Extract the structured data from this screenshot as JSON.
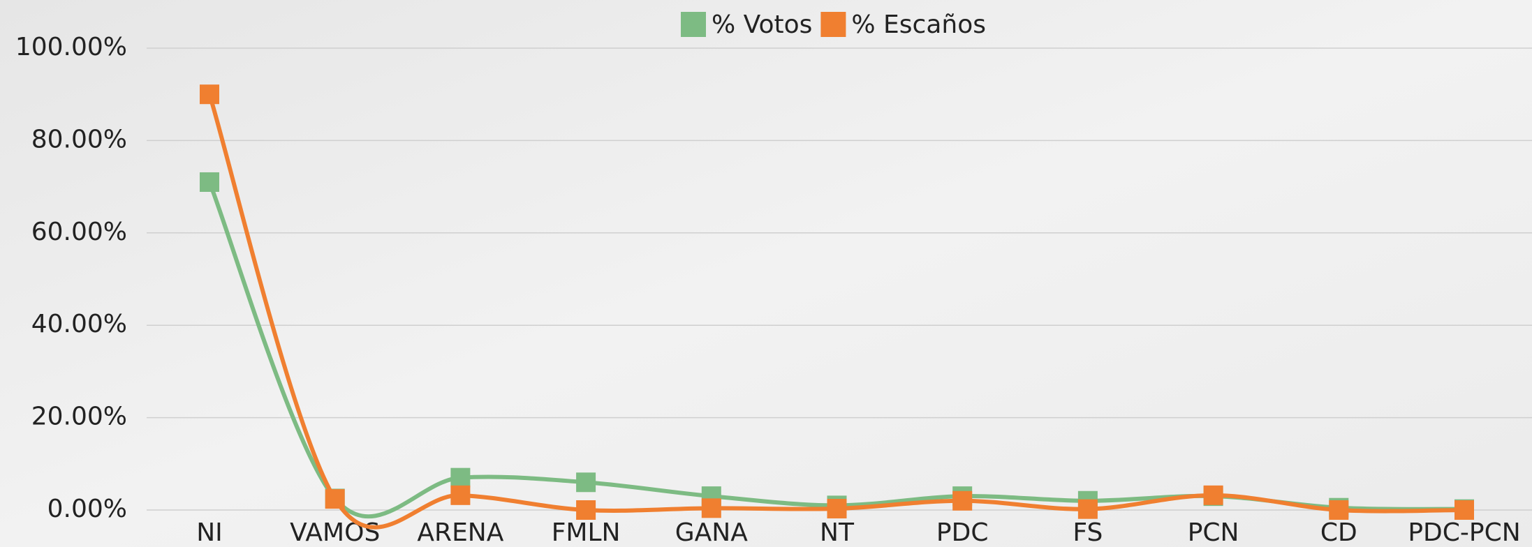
{
  "chart_data": {
    "type": "line",
    "categories": [
      "NI",
      "VAMOS",
      "ARENA",
      "FMLN",
      "GANA",
      "NT",
      "PDC",
      "FS",
      "PCN",
      "CD",
      "PDC-PCN"
    ],
    "series": [
      {
        "name": "% Votos",
        "color": "#7dbb83",
        "values": [
          71,
          2.5,
          7,
          6,
          3,
          1,
          3,
          2,
          3,
          0.5,
          0.2
        ]
      },
      {
        "name": "% Escaños",
        "color": "#f07f30",
        "values": [
          90,
          2.4,
          3.2,
          0,
          0.4,
          0.3,
          2,
          0.2,
          3.2,
          0,
          0
        ]
      }
    ],
    "ylim": [
      0,
      100
    ],
    "yticks": [
      {
        "value": 0,
        "label": "0.00%"
      },
      {
        "value": 20,
        "label": "20.00%"
      },
      {
        "value": 40,
        "label": "40.00%"
      },
      {
        "value": 60,
        "label": "60.00%"
      },
      {
        "value": 80,
        "label": "80.00%"
      },
      {
        "value": 100,
        "label": "100.00%"
      }
    ],
    "grid": true,
    "legend": "top",
    "smooth": true
  }
}
